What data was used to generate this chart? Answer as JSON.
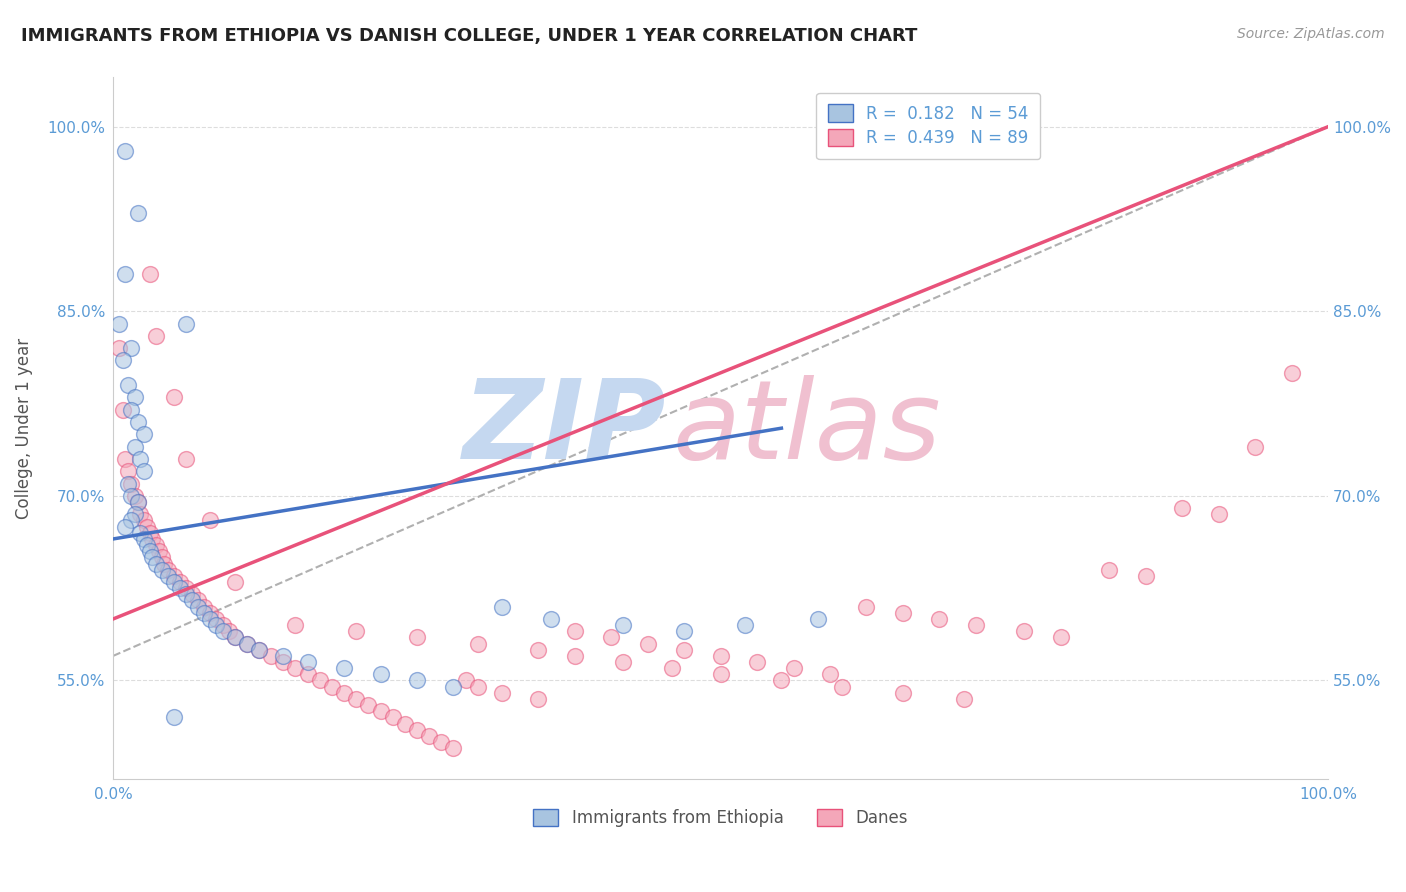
{
  "title": "IMMIGRANTS FROM ETHIOPIA VS DANISH COLLEGE, UNDER 1 YEAR CORRELATION CHART",
  "source_text": "Source: ZipAtlas.com",
  "ylabel": "College, Under 1 year",
  "xlim": [
    0.0,
    1.0
  ],
  "ylim": [
    0.47,
    1.04
  ],
  "x_ticks": [
    0.0,
    1.0
  ],
  "x_tick_labels": [
    "0.0%",
    "100.0%"
  ],
  "y_ticks": [
    0.55,
    0.7,
    0.85,
    1.0
  ],
  "y_tick_labels": [
    "55.0%",
    "70.0%",
    "85.0%",
    "100.0%"
  ],
  "legend_entries": [
    {
      "label": "R =  0.182   N = 54",
      "color": "#a8c4e0",
      "R": 0.182,
      "N": 54
    },
    {
      "label": "R =  0.439   N = 89",
      "color": "#f4a7b9",
      "R": 0.439,
      "N": 89
    }
  ],
  "blue_scatter_x": [
    0.01,
    0.02,
    0.01,
    0.005,
    0.015,
    0.008,
    0.012,
    0.018,
    0.015,
    0.02,
    0.025,
    0.018,
    0.022,
    0.025,
    0.012,
    0.015,
    0.02,
    0.018,
    0.015,
    0.01,
    0.022,
    0.025,
    0.028,
    0.03,
    0.032,
    0.035,
    0.04,
    0.045,
    0.05,
    0.055,
    0.06,
    0.065,
    0.07,
    0.075,
    0.08,
    0.085,
    0.09,
    0.1,
    0.11,
    0.12,
    0.14,
    0.16,
    0.19,
    0.22,
    0.25,
    0.28,
    0.32,
    0.36,
    0.42,
    0.47,
    0.52,
    0.58,
    0.06,
    0.05
  ],
  "blue_scatter_y": [
    0.98,
    0.93,
    0.88,
    0.84,
    0.82,
    0.81,
    0.79,
    0.78,
    0.77,
    0.76,
    0.75,
    0.74,
    0.73,
    0.72,
    0.71,
    0.7,
    0.695,
    0.685,
    0.68,
    0.675,
    0.67,
    0.665,
    0.66,
    0.655,
    0.65,
    0.645,
    0.64,
    0.635,
    0.63,
    0.625,
    0.62,
    0.615,
    0.61,
    0.605,
    0.6,
    0.595,
    0.59,
    0.585,
    0.58,
    0.575,
    0.57,
    0.565,
    0.56,
    0.555,
    0.55,
    0.545,
    0.61,
    0.6,
    0.595,
    0.59,
    0.595,
    0.6,
    0.84,
    0.52
  ],
  "pink_scatter_x": [
    0.005,
    0.008,
    0.01,
    0.012,
    0.015,
    0.018,
    0.02,
    0.022,
    0.025,
    0.028,
    0.03,
    0.032,
    0.035,
    0.038,
    0.04,
    0.042,
    0.045,
    0.05,
    0.055,
    0.06,
    0.065,
    0.07,
    0.075,
    0.08,
    0.085,
    0.09,
    0.095,
    0.1,
    0.11,
    0.12,
    0.13,
    0.14,
    0.15,
    0.16,
    0.17,
    0.18,
    0.19,
    0.2,
    0.21,
    0.22,
    0.23,
    0.24,
    0.25,
    0.26,
    0.27,
    0.28,
    0.29,
    0.3,
    0.32,
    0.35,
    0.38,
    0.41,
    0.44,
    0.47,
    0.5,
    0.53,
    0.56,
    0.59,
    0.62,
    0.65,
    0.68,
    0.71,
    0.75,
    0.78,
    0.82,
    0.85,
    0.88,
    0.91,
    0.94,
    0.97,
    0.03,
    0.035,
    0.05,
    0.06,
    0.08,
    0.1,
    0.15,
    0.2,
    0.25,
    0.3,
    0.35,
    0.38,
    0.42,
    0.46,
    0.5,
    0.55,
    0.6,
    0.65,
    0.7
  ],
  "pink_scatter_y": [
    0.82,
    0.77,
    0.73,
    0.72,
    0.71,
    0.7,
    0.695,
    0.685,
    0.68,
    0.675,
    0.67,
    0.665,
    0.66,
    0.655,
    0.65,
    0.645,
    0.64,
    0.635,
    0.63,
    0.625,
    0.62,
    0.615,
    0.61,
    0.605,
    0.6,
    0.595,
    0.59,
    0.585,
    0.58,
    0.575,
    0.57,
    0.565,
    0.56,
    0.555,
    0.55,
    0.545,
    0.54,
    0.535,
    0.53,
    0.525,
    0.52,
    0.515,
    0.51,
    0.505,
    0.5,
    0.495,
    0.55,
    0.545,
    0.54,
    0.535,
    0.59,
    0.585,
    0.58,
    0.575,
    0.57,
    0.565,
    0.56,
    0.555,
    0.61,
    0.605,
    0.6,
    0.595,
    0.59,
    0.585,
    0.64,
    0.635,
    0.69,
    0.685,
    0.74,
    0.8,
    0.88,
    0.83,
    0.78,
    0.73,
    0.68,
    0.63,
    0.595,
    0.59,
    0.585,
    0.58,
    0.575,
    0.57,
    0.565,
    0.56,
    0.555,
    0.55,
    0.545,
    0.54,
    0.535
  ],
  "blue_line_x0": 0.0,
  "blue_line_y0": 0.665,
  "blue_line_x1": 0.55,
  "blue_line_y1": 0.755,
  "pink_line_x0": 0.0,
  "pink_line_y0": 0.6,
  "pink_line_x1": 1.0,
  "pink_line_y1": 1.0,
  "dash_line_x0": 0.0,
  "dash_line_y0": 0.57,
  "dash_line_x1": 1.0,
  "dash_line_y1": 1.0,
  "blue_line_color": "#4472c4",
  "pink_line_color": "#e8527a",
  "dash_line_color": "#b0b0b0",
  "blue_scatter_color": "#a8c4e0",
  "pink_scatter_color": "#f4a7b9",
  "scatter_size": 130,
  "scatter_alpha": 0.55,
  "scatter_edge_width": 1.0,
  "grid_color": "#dddddd",
  "grid_style": "--",
  "title_color": "#222222",
  "axis_tick_color": "#5b9bd5",
  "title_fontsize": 13,
  "source_fontsize": 10,
  "ylabel_fontsize": 12,
  "tick_fontsize": 11,
  "legend_fontsize": 12
}
